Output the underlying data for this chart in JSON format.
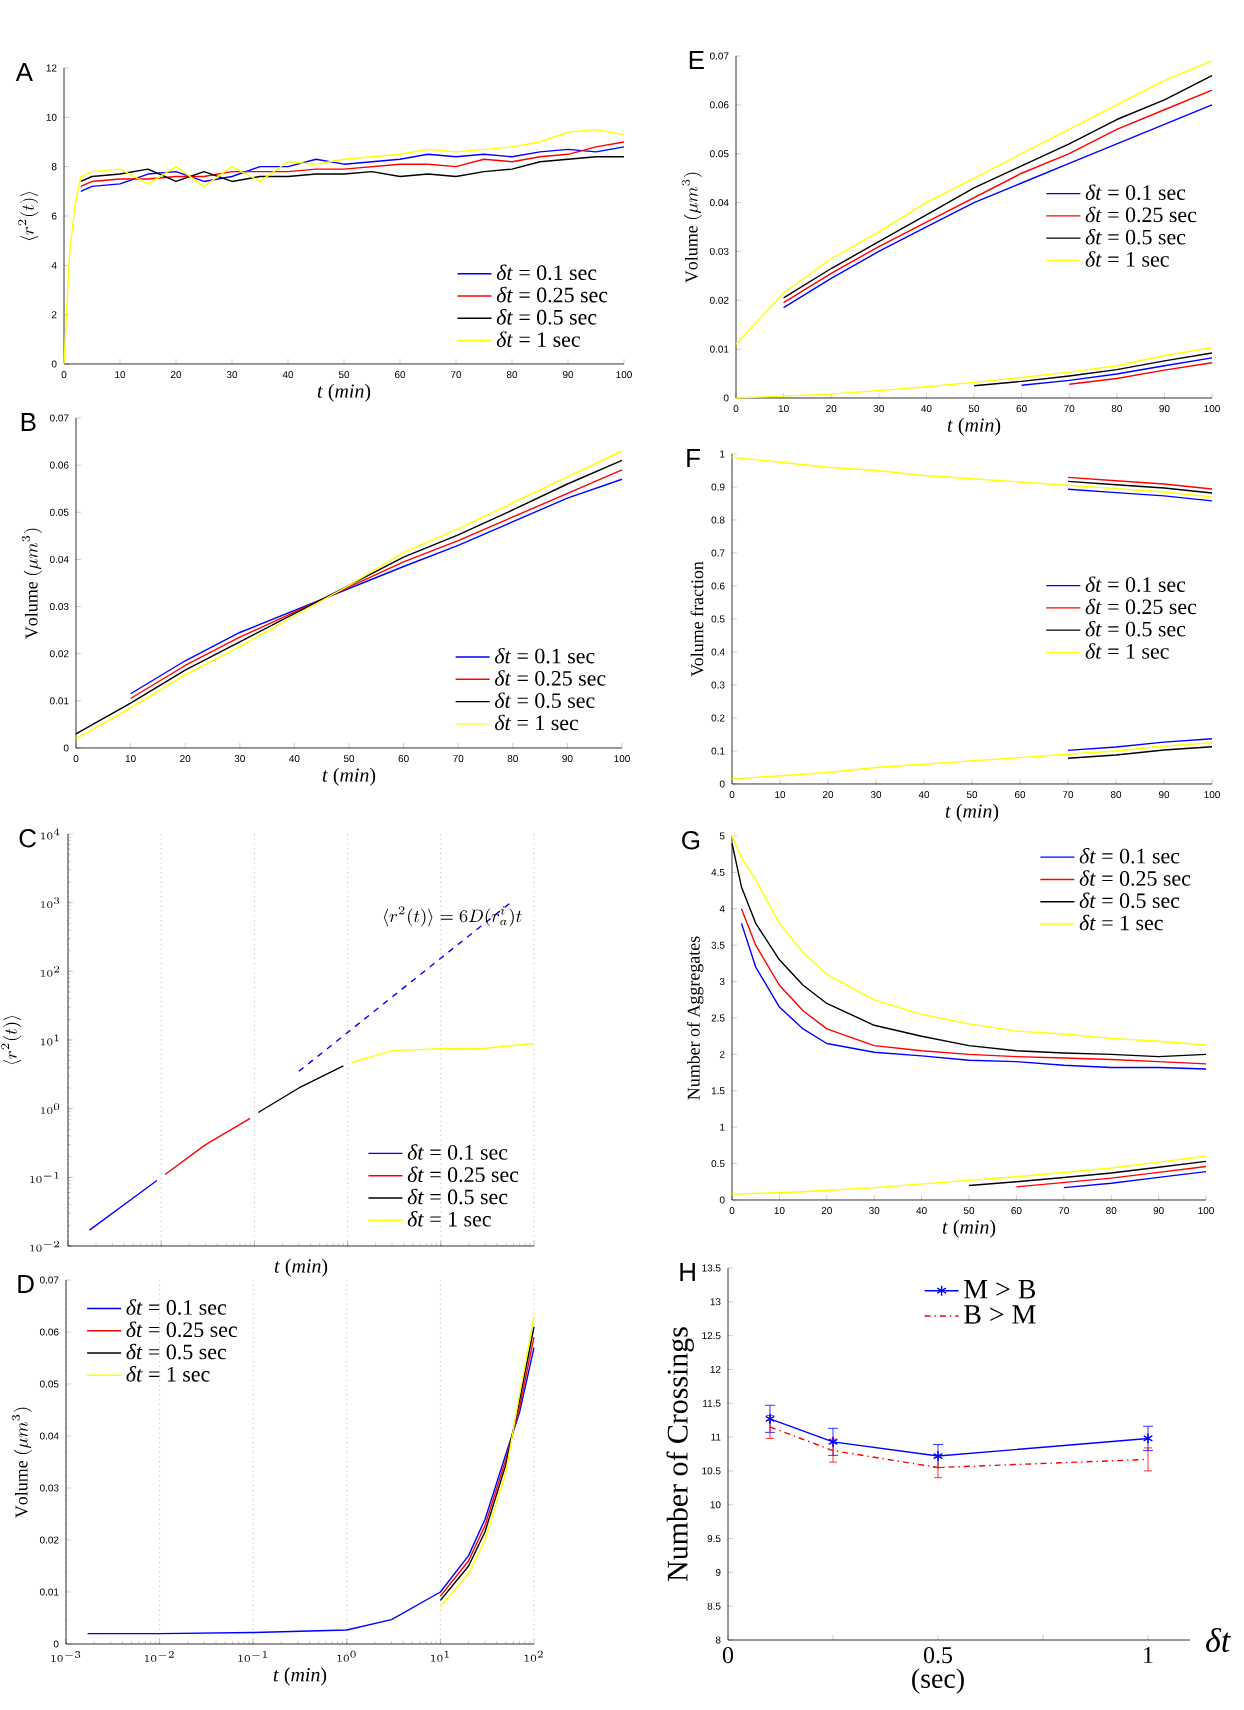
{
  "chart_data": [
    {
      "type": "line",
      "title": "A",
      "xlabel": "*t* (*min*)",
      "ylabel": "\\langle r^2(t)\\rangle",
      "legend": "bottom right",
      "xlim": [
        0,
        100
      ],
      "ylim": [
        0,
        12
      ],
      "xticks": [
        0,
        10,
        20,
        30,
        40,
        50,
        60,
        70,
        80,
        90,
        100
      ],
      "yticks": [
        0,
        2,
        4,
        6,
        8,
        10,
        12
      ],
      "x": [
        0,
        1,
        2,
        3,
        5,
        10,
        15,
        20,
        25,
        30,
        35,
        40,
        45,
        50,
        55,
        60,
        65,
        70,
        75,
        80,
        85,
        90,
        95,
        100
      ],
      "series": [
        {
          "name": "*δt* = 0.1 sec",
          "color": "#0000ff",
          "values": [
            null,
            null,
            null,
            7.0,
            7.2,
            7.3,
            7.7,
            7.8,
            7.4,
            7.6,
            8.0,
            8.0,
            8.3,
            8.1,
            8.2,
            8.3,
            8.5,
            8.4,
            8.5,
            8.4,
            8.6,
            8.7,
            8.6,
            8.8
          ]
        },
        {
          "name": "*δt* = 0.25 sec",
          "color": "#ff0000",
          "values": [
            null,
            null,
            null,
            7.2,
            7.4,
            7.5,
            7.5,
            7.6,
            7.6,
            7.8,
            7.8,
            7.8,
            7.9,
            7.9,
            8.0,
            8.1,
            8.1,
            8.0,
            8.3,
            8.2,
            8.4,
            8.5,
            8.8,
            9.0
          ]
        },
        {
          "name": "*δt* = 0.5 sec",
          "color": "#000000",
          "values": [
            null,
            null,
            null,
            7.4,
            7.6,
            7.7,
            7.9,
            7.4,
            7.8,
            7.4,
            7.6,
            7.6,
            7.7,
            7.7,
            7.8,
            7.6,
            7.7,
            7.6,
            7.8,
            7.9,
            8.2,
            8.3,
            8.4,
            8.4
          ]
        },
        {
          "name": "*δt* = 1 sec",
          "color": "#ffff00",
          "values": [
            0,
            4.5,
            6.5,
            7.6,
            7.8,
            7.9,
            7.3,
            8.0,
            7.2,
            8.0,
            7.4,
            8.2,
            8.1,
            8.3,
            8.4,
            8.5,
            8.7,
            8.6,
            8.7,
            8.8,
            9.0,
            9.4,
            9.5,
            9.3
          ]
        }
      ]
    },
    {
      "type": "line",
      "title": "B",
      "xlabel": "*t* (*min*)",
      "ylabel": "\\mathrm{Volume}\\ (\\mu m^3)",
      "legend": "bottom right",
      "xlim": [
        0,
        100
      ],
      "ylim": [
        0,
        0.07
      ],
      "xticks": [
        0,
        10,
        20,
        30,
        40,
        50,
        60,
        70,
        80,
        90,
        100
      ],
      "yticks": [
        0,
        0.01,
        0.02,
        0.03,
        0.04,
        0.05,
        0.06,
        0.07
      ],
      "series": [
        {
          "name": "*δt* = 0.1 sec",
          "color": "#0000ff",
          "x": [
            10,
            20,
            30,
            60,
            70,
            80,
            90,
            100
          ],
          "values": [
            0.0115,
            0.0185,
            0.0245,
            0.0385,
            0.043,
            0.048,
            0.053,
            0.057
          ]
        },
        {
          "name": "*δt* = 0.25 sec",
          "color": "#ff0000",
          "x": [
            10,
            20,
            30,
            60,
            70,
            80,
            90,
            100
          ],
          "values": [
            0.0105,
            0.0175,
            0.0235,
            0.0395,
            0.044,
            0.049,
            0.054,
            0.059
          ]
        },
        {
          "name": "*δt* = 0.5 sec",
          "color": "#000000",
          "x": [
            0,
            10,
            20,
            30,
            60,
            70,
            80,
            90,
            100
          ],
          "values": [
            0.003,
            0.0095,
            0.0165,
            0.0225,
            0.0405,
            0.0452,
            0.0505,
            0.056,
            0.061
          ]
        },
        {
          "name": "*δt* = 1 sec",
          "color": "#ffff00",
          "x": [
            0,
            10,
            20,
            30,
            40,
            50,
            60,
            70,
            80,
            90,
            100
          ],
          "values": [
            0.002,
            0.0085,
            0.0155,
            0.0215,
            0.028,
            0.0345,
            0.0415,
            0.0465,
            0.052,
            0.0575,
            0.063
          ]
        }
      ]
    },
    {
      "type": "line",
      "title": "C",
      "xlabel": "*t* (*min*)",
      "ylabel": "\\langle r^2(t)\\rangle",
      "legend": "bottom right",
      "log": "xy",
      "grid": "x",
      "tick_labels": "y",
      "xlim": [
        0.001,
        100
      ],
      "ylim": [
        0.01,
        10000
      ],
      "xticks": [
        {
          "value": 0.001,
          "label": null
        },
        {
          "value": 0.01,
          "label": null
        },
        {
          "value": 0.1,
          "label": null
        },
        {
          "value": 1,
          "label": null
        },
        {
          "value": 10,
          "label": null
        },
        {
          "value": 100,
          "label": null
        }
      ],
      "yticks": [
        {
          "value": 0.01,
          "label": "10^{-2}"
        },
        {
          "value": 0.1,
          "label": "10^{-1}"
        },
        {
          "value": 1,
          "label": "10^{0}"
        },
        {
          "value": 10,
          "label": "10^{1}"
        },
        {
          "value": 100,
          "label": "10^{2}"
        },
        {
          "value": 1000,
          "label": "10^{3}"
        },
        {
          "value": 10000,
          "label": "10^{4}"
        }
      ],
      "annotations": [
        "\\langle r^2(t)\\rangle = 6D(r_a^i)t"
      ],
      "series": [
        {
          "color": "#0000ff",
          "line_style": "dashed",
          "x": [
            0.3,
            56
          ],
          "values": [
            3.5,
            1000
          ]
        },
        {
          "name": "*δt* = 0.1 sec",
          "color": "#0000ff",
          "x": [
            0.0017,
            0.005,
            0.009
          ],
          "values": [
            0.017,
            0.05,
            0.09
          ]
        },
        {
          "name": "*δt* = 0.25 sec",
          "color": "#ff0000",
          "x": [
            0.011,
            0.03,
            0.09
          ],
          "values": [
            0.11,
            0.3,
            0.72
          ]
        },
        {
          "name": "*δt* = 0.5 sec",
          "color": "#000000",
          "x": [
            0.11,
            0.3,
            0.9
          ],
          "values": [
            0.88,
            2,
            4.2
          ]
        },
        {
          "name": "*δt* = 1 sec",
          "color": "#ffff00",
          "x": [
            1.1,
            3,
            10,
            30,
            100
          ],
          "values": [
            4.7,
            7,
            7.5,
            7.6,
            8.9
          ]
        }
      ]
    },
    {
      "type": "line",
      "title": "D",
      "xlabel": "*t* (*min*)",
      "ylabel": "\\mathrm{Volume}\\ (\\mu m^3)",
      "legend": "top left",
      "log": "x",
      "grid": "x",
      "xlim": [
        0.001,
        100
      ],
      "ylim": [
        0,
        0.07
      ],
      "xticks": [
        {
          "value": 0.001,
          "label": "10^{-3}"
        },
        {
          "value": 0.01,
          "label": "10^{-2}"
        },
        {
          "value": 0.1,
          "label": "10^{-1}"
        },
        {
          "value": 1,
          "label": "10^{0}"
        },
        {
          "value": 10,
          "label": "10^{1}"
        },
        {
          "value": 100,
          "label": "10^{2}"
        }
      ],
      "yticks": [
        0,
        0.01,
        0.02,
        0.03,
        0.04,
        0.05,
        0.06,
        0.07
      ],
      "series": [
        {
          "name": "*δt* = 0.1 sec",
          "color": "#0000ff",
          "x": [
            0.0017,
            0.01,
            0.1,
            1,
            3,
            10,
            20,
            30,
            50,
            70,
            100
          ],
          "values": [
            0.002,
            0.002,
            0.0022,
            0.0027,
            0.0047,
            0.01,
            0.017,
            0.024,
            0.0365,
            0.0445,
            0.057
          ]
        },
        {
          "name": "*δt* = 0.25 sec",
          "color": "#ff0000",
          "x": [
            10,
            20,
            30,
            50,
            70,
            100
          ],
          "values": [
            0.0092,
            0.016,
            0.0228,
            0.0355,
            0.0455,
            0.059
          ]
        },
        {
          "name": "*δt* = 0.5 sec",
          "color": "#000000",
          "x": [
            10,
            20,
            30,
            50,
            70,
            100
          ],
          "values": [
            0.0084,
            0.015,
            0.0216,
            0.0345,
            0.0468,
            0.061
          ]
        },
        {
          "name": "*δt* = 1 sec",
          "color": "#ffff00",
          "x": [
            10,
            20,
            30,
            50,
            70,
            100
          ],
          "values": [
            0.0072,
            0.0135,
            0.02,
            0.033,
            0.048,
            0.063
          ]
        }
      ]
    },
    {
      "type": "line",
      "title": "E",
      "xlabel": "*t* (*min*)",
      "ylabel": "\\mathrm{Volume}\\ (\\mu m^3)",
      "legend": "right",
      "xlim": [
        0,
        100
      ],
      "ylim": [
        0,
        0.07
      ],
      "xticks": [
        0,
        10,
        20,
        30,
        40,
        50,
        60,
        70,
        80,
        90,
        100
      ],
      "yticks": [
        0,
        0.01,
        0.02,
        0.03,
        0.04,
        0.05,
        0.06,
        0.07
      ],
      "x": [
        0,
        10,
        20,
        30,
        40,
        50,
        60,
        70,
        80,
        90,
        100
      ],
      "series": [
        {
          "name": "*δt* = 0.1 sec",
          "color": "#0000ff",
          "values": [
            null,
            0.0185,
            0.0245,
            0.03,
            0.035,
            0.04,
            0.044,
            0.048,
            0.052,
            0.056,
            0.06
          ]
        },
        {
          "name": "*δt* = 0.25 sec",
          "color": "#ff0000",
          "values": [
            null,
            0.0195,
            0.0255,
            0.031,
            0.036,
            0.041,
            0.046,
            0.05,
            0.055,
            0.059,
            0.063
          ]
        },
        {
          "name": "*δt* = 0.5 sec",
          "color": "#000000",
          "values": [
            null,
            0.0205,
            0.0265,
            0.032,
            0.0375,
            0.043,
            0.0475,
            0.052,
            0.057,
            0.061,
            0.066
          ]
        },
        {
          "name": "*δt* = 1 sec",
          "color": "#ffff00",
          "values": [
            0.011,
            0.0215,
            0.0285,
            0.034,
            0.04,
            0.045,
            0.05,
            0.055,
            0.06,
            0.065,
            0.069
          ]
        },
        {
          "color": "#0000ff",
          "x": [
            60,
            70,
            80,
            90,
            100
          ],
          "values": [
            0.0026,
            0.0036,
            0.0049,
            0.0066,
            0.0082
          ]
        },
        {
          "color": "#ff0000",
          "x": [
            70,
            80,
            90,
            100
          ],
          "values": [
            0.0028,
            0.004,
            0.0057,
            0.0072
          ]
        },
        {
          "color": "#000000",
          "x": [
            50,
            60,
            70,
            80,
            90,
            100
          ],
          "values": [
            0.0025,
            0.0034,
            0.0045,
            0.0058,
            0.0076,
            0.0092
          ]
        },
        {
          "color": "#ffff00",
          "values": [
            0,
            0.0004,
            0.0008,
            0.0015,
            0.0023,
            0.0032,
            0.0042,
            0.0053,
            0.0066,
            0.0087,
            0.0103
          ]
        }
      ]
    },
    {
      "type": "line",
      "title": "F",
      "xlabel": "*t* (*min*)",
      "ylabel": "Volume fraction",
      "legend": "right",
      "xlim": [
        0,
        100
      ],
      "ylim": [
        0,
        1
      ],
      "xticks": [
        0,
        10,
        20,
        30,
        40,
        50,
        60,
        70,
        80,
        90,
        100
      ],
      "yticks": [
        0,
        0.1,
        0.2,
        0.3,
        0.4,
        0.5,
        0.6,
        0.7,
        0.8,
        0.9,
        1
      ],
      "series": [
        {
          "name": "*δt* = 0.1 sec",
          "color": "#0000ff",
          "x": [
            70,
            80,
            90,
            100
          ],
          "values": [
            0.893,
            0.883,
            0.873,
            0.858
          ]
        },
        {
          "name": "*δt* = 0.25 sec",
          "color": "#ff0000",
          "x": [
            70,
            80,
            90,
            100
          ],
          "values": [
            0.929,
            0.919,
            0.909,
            0.894
          ]
        },
        {
          "name": "*δt* = 0.5 sec",
          "color": "#000000",
          "x": [
            70,
            80,
            90,
            100
          ],
          "values": [
            0.917,
            0.907,
            0.897,
            0.882
          ]
        },
        {
          "name": "*δt* = 1 sec",
          "color": "#ffff00",
          "x": [
            0,
            10,
            20,
            30,
            40,
            50,
            60,
            70,
            80,
            90,
            100
          ],
          "values": [
            0.99,
            0.975,
            0.96,
            0.95,
            0.935,
            0.925,
            0.915,
            0.905,
            0.895,
            0.885,
            0.87
          ]
        },
        {
          "color": "#0000ff",
          "x": [
            70,
            80,
            90,
            100
          ],
          "values": [
            0.102,
            0.112,
            0.127,
            0.137
          ]
        },
        {
          "color": "#000000",
          "x": [
            70,
            80,
            90,
            100
          ],
          "values": [
            0.078,
            0.088,
            0.103,
            0.113
          ]
        },
        {
          "color": "#ffff00",
          "x": [
            0,
            10,
            20,
            30,
            40,
            50,
            60,
            70,
            80,
            90,
            100
          ],
          "values": [
            0.015,
            0.025,
            0.035,
            0.05,
            0.06,
            0.07,
            0.08,
            0.09,
            0.1,
            0.115,
            0.125
          ]
        }
      ]
    },
    {
      "type": "line",
      "title": "G",
      "xlabel": "*t* (*min*)",
      "ylabel": "Number of Aggregates",
      "legend": "top right",
      "xlim": [
        0,
        100
      ],
      "ylim": [
        0,
        5
      ],
      "xticks": [
        0,
        10,
        20,
        30,
        40,
        50,
        60,
        70,
        80,
        90,
        100
      ],
      "yticks": [
        0,
        0.5,
        1,
        1.5,
        2,
        2.5,
        3,
        3.5,
        4,
        4.5,
        5
      ],
      "x": [
        0,
        2,
        5,
        10,
        15,
        20,
        30,
        40,
        50,
        60,
        70,
        80,
        90,
        100
      ],
      "series": [
        {
          "name": "*δt* = 0.1 sec",
          "color": "#0000ff",
          "values": [
            null,
            3.8,
            3.2,
            2.65,
            2.35,
            2.15,
            2.03,
            1.98,
            1.92,
            1.9,
            1.85,
            1.82,
            1.82,
            1.8
          ]
        },
        {
          "name": "*δt* = 0.25 sec",
          "color": "#ff0000",
          "values": [
            null,
            4.0,
            3.5,
            2.95,
            2.6,
            2.35,
            2.12,
            2.05,
            2.0,
            1.97,
            1.95,
            1.93,
            1.9,
            1.87
          ]
        },
        {
          "name": "*δt* = 0.5 sec",
          "color": "#000000",
          "values": [
            4.9,
            4.3,
            3.8,
            3.3,
            2.95,
            2.7,
            2.4,
            2.25,
            2.12,
            2.05,
            2.02,
            2.0,
            1.97,
            2.0
          ]
        },
        {
          "name": "*δt* = 1 sec",
          "color": "#ffff00",
          "values": [
            5.0,
            4.7,
            4.4,
            3.8,
            3.4,
            3.1,
            2.75,
            2.55,
            2.42,
            2.32,
            2.28,
            2.22,
            2.18,
            2.13
          ]
        },
        {
          "color": "#0000ff",
          "x": [
            70,
            80,
            90,
            100
          ],
          "values": [
            0.17,
            0.23,
            0.31,
            0.39
          ]
        },
        {
          "color": "#ff0000",
          "x": [
            60,
            70,
            80,
            90,
            100
          ],
          "values": [
            0.18,
            0.24,
            0.3,
            0.38,
            0.46
          ]
        },
        {
          "color": "#000000",
          "x": [
            50,
            60,
            70,
            80,
            90,
            100
          ],
          "values": [
            0.2,
            0.25,
            0.31,
            0.37,
            0.45,
            0.53
          ]
        },
        {
          "color": "#ffff00",
          "x": [
            0,
            10,
            20,
            30,
            40,
            50,
            60,
            70,
            80,
            90,
            100
          ],
          "values": [
            0.08,
            0.1,
            0.13,
            0.17,
            0.22,
            0.27,
            0.32,
            0.38,
            0.44,
            0.52,
            0.6
          ]
        }
      ]
    },
    {
      "type": "line",
      "title": "H",
      "xlabel": "*δt*",
      "ylabel": "Number of Crossings",
      "legend": "top",
      "xlim": [
        0,
        1.1
      ],
      "ylim": [
        8,
        13.5
      ],
      "xticks": [
        0,
        {
          "value": 0.25,
          "label": null
        },
        0.5,
        {
          "value": 0.75,
          "label": null
        },
        1
      ],
      "yticks": [
        8,
        8.5,
        9,
        9.5,
        10,
        10.5,
        11,
        11.5,
        12,
        12.5,
        13,
        13.5
      ],
      "annotations": [
        "(sec)"
      ],
      "x": [
        0.1,
        0.25,
        0.5,
        1
      ],
      "series": [
        {
          "name": "M > B",
          "color": "#0000ff",
          "marker": "cross",
          "line_style": "solid",
          "values": [
            11.27,
            10.93,
            10.72,
            10.98
          ],
          "errors": [
            0.2,
            0.2,
            0.17,
            0.18
          ]
        },
        {
          "name": "B > M",
          "color": "#ff0000",
          "marker": "none",
          "line_style": "dashdot",
          "values": [
            11.15,
            10.8,
            10.55,
            10.67
          ],
          "errors": [
            0.17,
            0.17,
            0.15,
            0.17
          ]
        }
      ]
    }
  ]
}
